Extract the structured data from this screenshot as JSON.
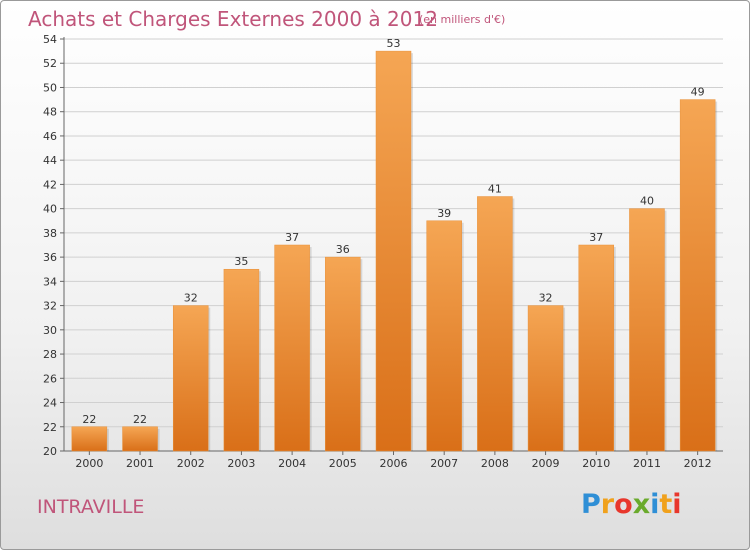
{
  "header": {
    "title": "Achats et Charges Externes 2000 à 2012",
    "subtitle": "(en milliers d'€)"
  },
  "footer": {
    "commune": "INTRAVILLE",
    "logo": {
      "text": "Proxiti",
      "letters": [
        "P",
        "r",
        "o",
        "x",
        "i",
        "t",
        "i"
      ],
      "colors": [
        "#2f8fd6",
        "#f0a11c",
        "#e8372c",
        "#6aaa2c",
        "#2f8fd6",
        "#f0a11c",
        "#e8372c"
      ]
    }
  },
  "colors": {
    "bar_light": "#f5a654",
    "bar_dark": "#d96f18",
    "text_accent": "#c0557a",
    "grid": "#d0d0d0"
  },
  "chart_data": {
    "type": "bar",
    "title": "Achats et Charges Externes 2000 à 2012",
    "subtitle": "(en milliers d'€)",
    "categories": [
      "2000",
      "2001",
      "2002",
      "2003",
      "2004",
      "2005",
      "2006",
      "2007",
      "2008",
      "2009",
      "2010",
      "2011",
      "2012"
    ],
    "values": [
      22,
      22,
      32,
      35,
      37,
      36,
      53,
      39,
      41,
      32,
      37,
      40,
      49
    ],
    "ylim": [
      20,
      54
    ],
    "yticks": [
      20,
      22,
      24,
      26,
      28,
      30,
      32,
      34,
      36,
      38,
      40,
      42,
      44,
      46,
      48,
      50,
      52,
      54
    ],
    "grid": true,
    "data_labels": true
  }
}
